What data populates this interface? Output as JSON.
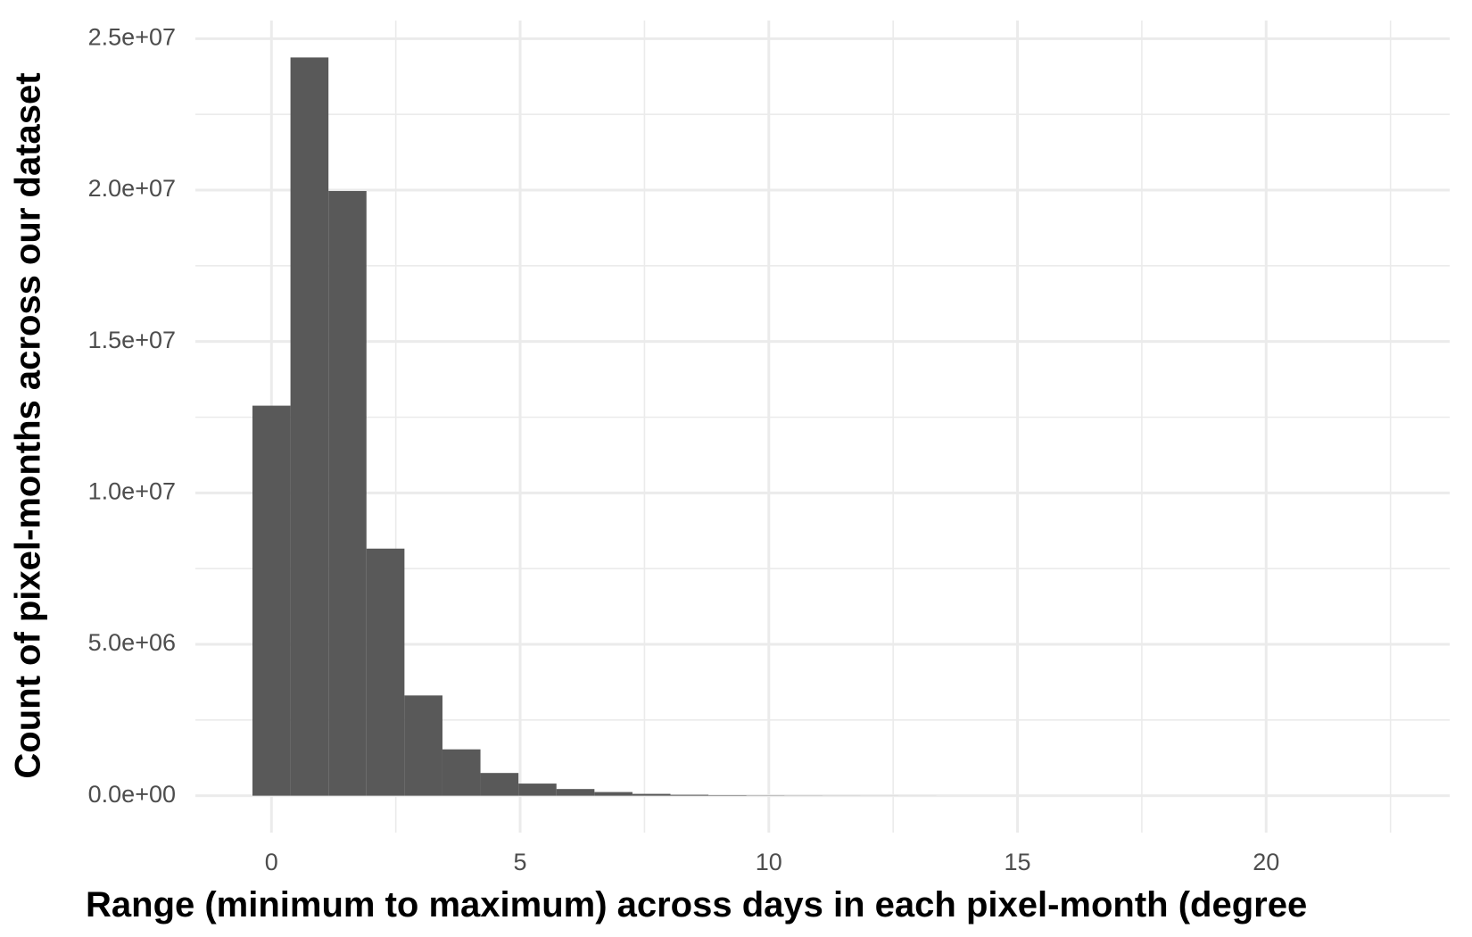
{
  "chart_data": {
    "type": "histogram",
    "x_label": "Range (minimum to maximum) across days in each pixel-month (degree",
    "y_label": "Count of pixel-months across our dataset",
    "bins": [
      -0.382,
      0.382,
      1.146,
      1.91,
      2.674,
      3.438,
      4.202,
      4.966,
      5.73,
      6.494,
      7.258,
      8.022,
      8.786,
      9.55,
      10.314,
      11.078,
      11.842,
      12.606,
      13.37,
      14.134,
      14.898,
      15.662,
      16.426,
      17.19,
      17.954,
      18.718,
      19.482,
      20.246,
      21.01,
      21.774,
      22.538
    ],
    "values": [
      12880000,
      24380000,
      19970000,
      8160000,
      3310000,
      1530000,
      750000,
      400000,
      220000,
      120000,
      60000,
      30000,
      15000,
      8000,
      5000,
      3000,
      2000,
      1000,
      0,
      0,
      0,
      0,
      0,
      0,
      0,
      0,
      0,
      0,
      0,
      0
    ],
    "color": "#595959",
    "xlim": [
      -1.53,
      23.69
    ],
    "ylim": [
      -1219000,
      25600000
    ],
    "xticks": [
      0,
      5,
      10,
      15,
      20
    ],
    "yticks": [
      {
        "value": 0,
        "label": "0.0e+00"
      },
      {
        "value": 5000000,
        "label": "5.0e+06"
      },
      {
        "value": 10000000,
        "label": "1.0e+07"
      },
      {
        "value": 15000000,
        "label": "1.5e+07"
      },
      {
        "value": 20000000,
        "label": "2.0e+07"
      },
      {
        "value": 25000000,
        "label": "2.5e+07"
      }
    ],
    "xminorticks": [
      2.5,
      7.5,
      12.5,
      17.5,
      22.5
    ],
    "yminorticks": [
      2500000,
      7500000,
      12500000,
      17500000,
      22500000
    ],
    "grid": true
  }
}
